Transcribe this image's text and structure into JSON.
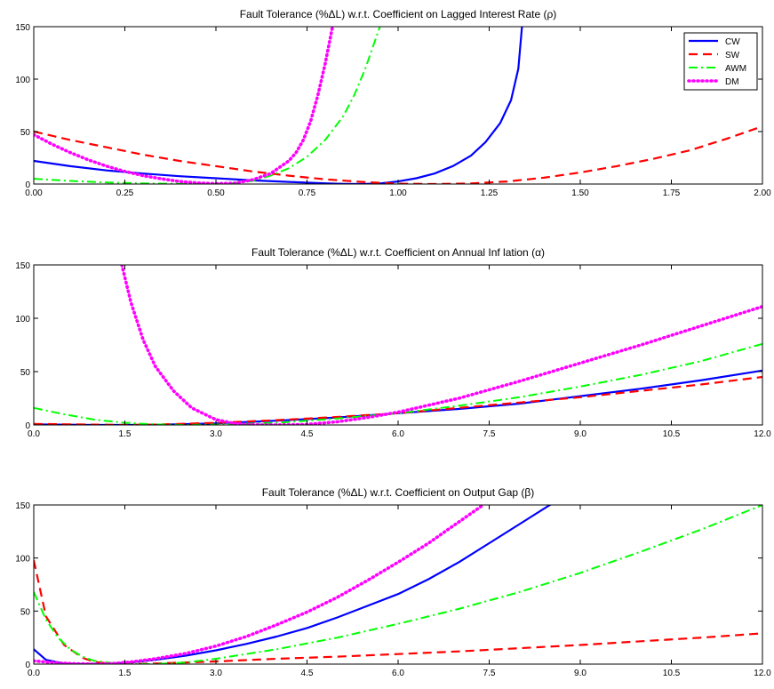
{
  "chart_data": [
    {
      "type": "line",
      "title": "Fault Tolerance (%ΔL) w.r.t. Coefficient  on Lagged Interest Rate (ρ)",
      "xlabel": "",
      "ylabel": "",
      "xlim": [
        0,
        2
      ],
      "ylim": [
        0,
        150
      ],
      "xticks": [
        "0.00",
        "0.25",
        "0.50",
        "0.75",
        "1.00",
        "1.25",
        "1.50",
        "1.75",
        "2.00"
      ],
      "yticks": [
        "0",
        "50",
        "100",
        "150"
      ],
      "legend": {
        "position": "top-right",
        "entries": [
          "CW",
          "SW",
          "AWM",
          "DM"
        ]
      },
      "series": [
        {
          "name": "CW",
          "color": "#0000ff",
          "style": "solid",
          "x": [
            0,
            0.1,
            0.2,
            0.3,
            0.4,
            0.5,
            0.6,
            0.7,
            0.8,
            0.85,
            0.9,
            0.95,
            1.0,
            1.05,
            1.1,
            1.15,
            1.2,
            1.24,
            1.28,
            1.31,
            1.33,
            1.34
          ],
          "y": [
            22,
            17,
            13,
            10,
            7.5,
            5.5,
            3.5,
            2,
            0.7,
            0.2,
            0,
            0.6,
            2.5,
            5.5,
            10,
            17,
            27,
            40,
            58,
            80,
            110,
            150
          ]
        },
        {
          "name": "SW",
          "color": "#ff0000",
          "style": "dashed",
          "x": [
            0,
            0.1,
            0.2,
            0.3,
            0.4,
            0.5,
            0.6,
            0.7,
            0.8,
            0.9,
            1.0,
            1.1,
            1.2,
            1.3,
            1.4,
            1.5,
            1.6,
            1.7,
            1.8,
            1.9,
            2.0
          ],
          "y": [
            50,
            42,
            35,
            28,
            22,
            17,
            12,
            8,
            4.5,
            2,
            0.3,
            0,
            0.6,
            2.5,
            6,
            11,
            17,
            24,
            32,
            43,
            55
          ]
        },
        {
          "name": "AWM",
          "color": "#00ff00",
          "style": "dashdot",
          "x": [
            0,
            0.1,
            0.2,
            0.3,
            0.4,
            0.5,
            0.55,
            0.6,
            0.65,
            0.7,
            0.75,
            0.8,
            0.85,
            0.88,
            0.91,
            0.93,
            0.95
          ],
          "y": [
            5,
            3,
            1.5,
            0.6,
            0.2,
            0.1,
            1,
            3,
            8,
            15,
            26,
            42,
            65,
            85,
            110,
            130,
            150
          ]
        },
        {
          "name": "DM",
          "color": "#ff00ff",
          "style": "dotted",
          "x": [
            0,
            0.05,
            0.1,
            0.15,
            0.2,
            0.25,
            0.3,
            0.35,
            0.4,
            0.45,
            0.5,
            0.55,
            0.6,
            0.65,
            0.7,
            0.72,
            0.74,
            0.76,
            0.78,
            0.8,
            0.82
          ],
          "y": [
            47,
            38,
            30,
            23,
            17,
            12,
            8,
            5,
            2.5,
            1,
            0.3,
            0.8,
            4,
            10,
            22,
            30,
            42,
            60,
            85,
            115,
            150
          ]
        }
      ]
    },
    {
      "type": "line",
      "title": "Fault Tolerance (%ΔL) w.r.t. Coefficient  on Annual Inf lation (α)",
      "xlabel": "",
      "ylabel": "",
      "xlim": [
        0,
        12
      ],
      "ylim": [
        0,
        150
      ],
      "xticks": [
        "0.0",
        "1.5",
        "3.0",
        "4.5",
        "6.0",
        "7.5",
        "9.0",
        "10.5",
        "12.0"
      ],
      "yticks": [
        "0",
        "50",
        "100",
        "150"
      ],
      "series": [
        {
          "name": "CW",
          "color": "#0000ff",
          "style": "solid",
          "x": [
            0,
            1,
            1.5,
            2,
            3,
            4,
            5,
            6,
            7,
            8,
            9,
            10,
            11,
            12
          ],
          "y": [
            0.5,
            0,
            0,
            0.2,
            1.5,
            4,
            7,
            11,
            15,
            20,
            27,
            34,
            42,
            51
          ]
        },
        {
          "name": "SW",
          "color": "#ff0000",
          "style": "dashed",
          "x": [
            0,
            1,
            1.5,
            2,
            3,
            4,
            5,
            6,
            7,
            8,
            9,
            10,
            11,
            12
          ],
          "y": [
            1,
            0.3,
            0,
            0.3,
            2,
            4.5,
            7.5,
            11,
            16,
            21,
            26,
            32,
            38,
            45
          ]
        },
        {
          "name": "AWM",
          "color": "#00ff00",
          "style": "dashdot",
          "x": [
            0,
            0.5,
            1,
            1.5,
            2,
            2.5,
            3,
            4,
            5,
            6,
            7,
            8,
            9,
            10,
            11,
            12
          ],
          "y": [
            16,
            10,
            5,
            2,
            0.5,
            0,
            0.3,
            2,
            6,
            11,
            18,
            26,
            36,
            47,
            60,
            76
          ]
        },
        {
          "name": "DM",
          "color": "#ff00ff",
          "style": "dotted",
          "x": [
            1.45,
            1.6,
            1.8,
            2,
            2.3,
            2.6,
            3,
            3.3,
            3.6,
            4,
            4.5,
            5,
            5.5,
            6,
            7,
            8,
            9,
            10,
            11,
            12
          ],
          "y": [
            150,
            115,
            80,
            55,
            32,
            16,
            5,
            1.5,
            0.2,
            0,
            0.5,
            3,
            7,
            12,
            25,
            41,
            58,
            75,
            93,
            111
          ]
        }
      ]
    },
    {
      "type": "line",
      "title": "Fault Tolerance (%ΔL) w.r.t. Coefficient  on Output Gap (β)",
      "xlabel": "",
      "ylabel": "",
      "xlim": [
        0,
        12
      ],
      "ylim": [
        0,
        150
      ],
      "xticks": [
        "0.0",
        "1.5",
        "3.0",
        "4.5",
        "6.0",
        "7.5",
        "9.0",
        "10.5",
        "12.0"
      ],
      "yticks": [
        "0",
        "50",
        "100",
        "150"
      ],
      "series": [
        {
          "name": "CW",
          "color": "#0000ff",
          "style": "solid",
          "x": [
            0,
            0.2,
            0.5,
            0.8,
            1.2,
            1.6,
            2,
            2.5,
            3,
            3.5,
            4,
            4.5,
            5,
            5.5,
            6,
            6.5,
            7,
            7.5,
            8,
            8.5,
            8.75
          ],
          "y": [
            14,
            4,
            0.5,
            0,
            0.5,
            1.5,
            4,
            8,
            13,
            19,
            26,
            34,
            44,
            55,
            66,
            80,
            96,
            114,
            132,
            150,
            158
          ]
        },
        {
          "name": "SW",
          "color": "#ff0000",
          "style": "dashed",
          "x": [
            0,
            0.2,
            0.5,
            0.8,
            1,
            1.3,
            1.5,
            2,
            3,
            4,
            5,
            6,
            7,
            8,
            9,
            10,
            11,
            12
          ],
          "y": [
            98,
            45,
            18,
            6,
            2,
            0.3,
            0,
            0.6,
            2.5,
            5,
            7,
            9.5,
            12,
            15,
            18,
            21.5,
            25,
            29
          ]
        },
        {
          "name": "AWM",
          "color": "#00ff00",
          "style": "dashdot",
          "x": [
            0,
            0.2,
            0.4,
            0.6,
            0.8,
            1,
            1.3,
            1.6,
            2,
            2.5,
            3,
            4,
            5,
            6,
            7,
            8,
            9,
            10,
            11,
            12
          ],
          "y": [
            68,
            42,
            25,
            14,
            7,
            3,
            1,
            0.2,
            0,
            1.5,
            5,
            14,
            25,
            38,
            52,
            68,
            86,
            106,
            127,
            150
          ]
        },
        {
          "name": "DM",
          "color": "#ff00ff",
          "style": "dotted",
          "x": [
            0,
            0.3,
            0.6,
            1,
            1.3,
            1.6,
            2,
            2.5,
            3,
            3.5,
            4,
            4.5,
            5,
            5.5,
            6,
            6.5,
            7,
            7.4
          ],
          "y": [
            3,
            1.5,
            0.5,
            0,
            0.5,
            2,
            5,
            10,
            17,
            26,
            37,
            49,
            63,
            79,
            96,
            114,
            134,
            150
          ]
        }
      ]
    }
  ]
}
